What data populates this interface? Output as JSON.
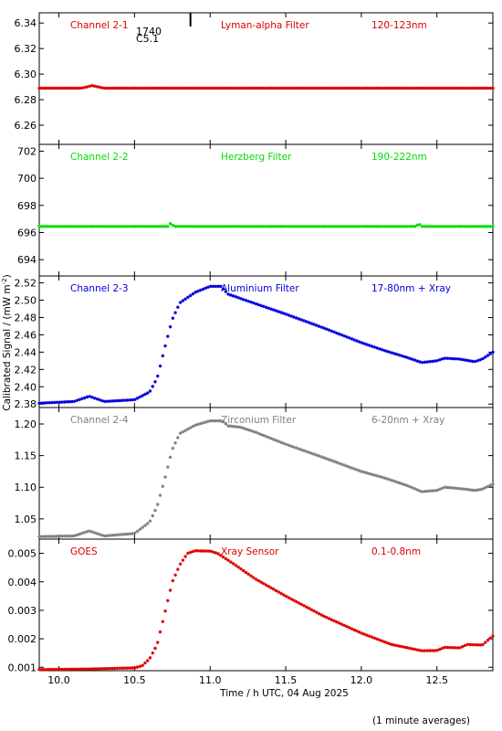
{
  "chart_data": {
    "type": "scatter",
    "marker": "asterisk",
    "xlabel": "Time / h UTC, 04 Aug 2025",
    "ylabel": "Calibrated Signal / (mW m",
    "ylabel_sup": "-2",
    "ylabel_close": ")",
    "footnote": "(1 minute averages)",
    "xlim": [
      9.87,
      12.87
    ],
    "xticks": [
      10.0,
      10.5,
      11.0,
      11.5,
      12.0,
      12.5
    ],
    "xtick_labels": [
      "10.0",
      "10.5",
      "11.0",
      "11.5",
      "12.0",
      "12.5"
    ],
    "event_marker": {
      "time": "1740",
      "class": "C5.1",
      "x": 10.87
    },
    "panels": [
      {
        "name": "Channel 2-1",
        "filter": "Lyman-alpha Filter",
        "band": "120-123nm",
        "color": "#dd0000",
        "ylim": [
          6.245,
          6.348
        ],
        "yticks": [
          6.26,
          6.28,
          6.3,
          6.32,
          6.34
        ],
        "ytick_labels": [
          "6.26",
          "6.28",
          "6.30",
          "6.32",
          "6.34"
        ],
        "knots": [
          [
            9.87,
            6.289
          ],
          [
            10.15,
            6.289
          ],
          [
            10.22,
            6.291
          ],
          [
            10.3,
            6.289
          ],
          [
            12.87,
            6.289
          ]
        ]
      },
      {
        "name": "Channel 2-2",
        "filter": "Herzberg Filter",
        "band": "190-222nm",
        "color": "#00dd00",
        "ylim": [
          692.8,
          702.5
        ],
        "yticks": [
          694,
          696,
          698,
          700,
          702
        ],
        "ytick_labels": [
          "694",
          "696",
          "698",
          "700",
          "702"
        ],
        "knots": [
          [
            9.87,
            696.45
          ],
          [
            10.72,
            696.45
          ],
          [
            10.74,
            696.7
          ],
          [
            10.76,
            696.45
          ],
          [
            12.36,
            696.45
          ],
          [
            12.38,
            696.65
          ],
          [
            12.4,
            696.45
          ],
          [
            12.87,
            696.45
          ]
        ]
      },
      {
        "name": "Channel 2-3",
        "filter": "Aluminium Filter",
        "band": "17-80nm + Xray",
        "color": "#0000dd",
        "ylim": [
          2.376,
          2.528
        ],
        "yticks": [
          2.38,
          2.4,
          2.42,
          2.44,
          2.46,
          2.48,
          2.5,
          2.52
        ],
        "ytick_labels": [
          "2.38",
          "2.40",
          "2.42",
          "2.44",
          "2.46",
          "2.48",
          "2.50",
          "2.52"
        ],
        "knots": [
          [
            9.87,
            2.381
          ],
          [
            10.1,
            2.383
          ],
          [
            10.2,
            2.389
          ],
          [
            10.3,
            2.383
          ],
          [
            10.5,
            2.385
          ],
          [
            10.6,
            2.394
          ],
          [
            10.65,
            2.41
          ],
          [
            10.7,
            2.445
          ],
          [
            10.75,
            2.478
          ],
          [
            10.8,
            2.497
          ],
          [
            10.9,
            2.509
          ],
          [
            11.0,
            2.516
          ],
          [
            11.07,
            2.516
          ],
          [
            11.12,
            2.507
          ],
          [
            11.2,
            2.502
          ],
          [
            11.3,
            2.496
          ],
          [
            11.5,
            2.484
          ],
          [
            11.75,
            2.468
          ],
          [
            12.0,
            2.451
          ],
          [
            12.15,
            2.442
          ],
          [
            12.3,
            2.434
          ],
          [
            12.4,
            2.428
          ],
          [
            12.5,
            2.43
          ],
          [
            12.55,
            2.433
          ],
          [
            12.65,
            2.432
          ],
          [
            12.75,
            2.429
          ],
          [
            12.8,
            2.432
          ],
          [
            12.87,
            2.44
          ]
        ]
      },
      {
        "name": "Channel 2-4",
        "filter": "Zirconium Filter",
        "band": "6-20nm + Xray",
        "color": "#808080",
        "ylim": [
          1.018,
          1.226
        ],
        "yticks": [
          1.05,
          1.1,
          1.15,
          1.2
        ],
        "ytick_labels": [
          "1.05",
          "1.10",
          "1.15",
          "1.20"
        ],
        "knots": [
          [
            9.87,
            1.022
          ],
          [
            10.1,
            1.023
          ],
          [
            10.2,
            1.031
          ],
          [
            10.3,
            1.023
          ],
          [
            10.5,
            1.027
          ],
          [
            10.6,
            1.045
          ],
          [
            10.65,
            1.07
          ],
          [
            10.7,
            1.113
          ],
          [
            10.75,
            1.16
          ],
          [
            10.8,
            1.185
          ],
          [
            10.9,
            1.198
          ],
          [
            11.0,
            1.205
          ],
          [
            11.08,
            1.205
          ],
          [
            11.12,
            1.197
          ],
          [
            11.2,
            1.195
          ],
          [
            11.3,
            1.187
          ],
          [
            11.5,
            1.168
          ],
          [
            11.75,
            1.147
          ],
          [
            12.0,
            1.125
          ],
          [
            12.15,
            1.115
          ],
          [
            12.3,
            1.103
          ],
          [
            12.4,
            1.093
          ],
          [
            12.5,
            1.095
          ],
          [
            12.55,
            1.1
          ],
          [
            12.65,
            1.098
          ],
          [
            12.75,
            1.095
          ],
          [
            12.8,
            1.097
          ],
          [
            12.87,
            1.105
          ]
        ]
      },
      {
        "name": "GOES",
        "filter": "Xray Sensor",
        "band": "0.1-0.8nm",
        "color": "#dd0000",
        "ylim": [
          0.00088,
          0.0055
        ],
        "yticks": [
          0.001,
          0.002,
          0.003,
          0.004,
          0.005
        ],
        "ytick_labels": [
          "0.001",
          "0.002",
          "0.003",
          "0.004",
          "0.005"
        ],
        "knots": [
          [
            9.87,
            0.00092
          ],
          [
            10.2,
            0.00094
          ],
          [
            10.5,
            0.00098
          ],
          [
            10.55,
            0.00105
          ],
          [
            10.6,
            0.0013
          ],
          [
            10.65,
            0.0018
          ],
          [
            10.7,
            0.0029
          ],
          [
            10.75,
            0.004
          ],
          [
            10.8,
            0.0046
          ],
          [
            10.85,
            0.005
          ],
          [
            10.9,
            0.00509
          ],
          [
            11.0,
            0.00508
          ],
          [
            11.05,
            0.005
          ],
          [
            11.15,
            0.00465
          ],
          [
            11.3,
            0.0041
          ],
          [
            11.5,
            0.0035
          ],
          [
            11.75,
            0.0028
          ],
          [
            12.0,
            0.0022
          ],
          [
            12.2,
            0.0018
          ],
          [
            12.4,
            0.00158
          ],
          [
            12.5,
            0.00159
          ],
          [
            12.55,
            0.0017
          ],
          [
            12.65,
            0.00168
          ],
          [
            12.7,
            0.0018
          ],
          [
            12.8,
            0.00178
          ],
          [
            12.87,
            0.0021
          ]
        ]
      }
    ]
  }
}
